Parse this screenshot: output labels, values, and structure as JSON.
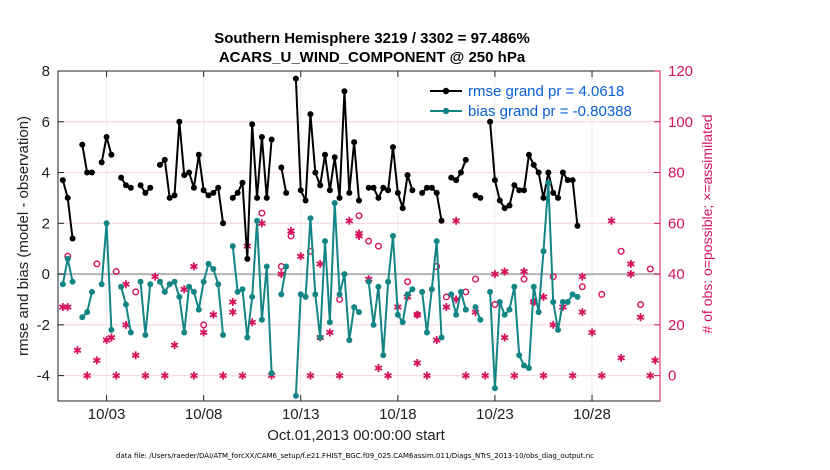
{
  "chart_data": {
    "type": "line",
    "title_line1": "Southern Hemisphere 3219 / 3302 = 97.486%",
    "title_line2": "ACARS_U_WIND_COMPONENT @ 250 hPa",
    "xlabel": "Oct.01,2013 00:00:00 start",
    "ylabel": "rmse and bias (model - observation)",
    "y2label": "# of obs: o=possible; ×=assimilated",
    "footer": "data file: /Users/raeder/DAI/ATM_forcXX/CAM6_setup/f.e21.FHIST_BGC.f09_025.CAM6assim.011/Diags_NTrS_2013-10/obs_diag_output.nc",
    "xlim": [
      0.5,
      31.5
    ],
    "ylim": [
      -5,
      8
    ],
    "y2lim": [
      -10,
      120
    ],
    "x_ticks": [
      3,
      8,
      13,
      18,
      23,
      28
    ],
    "x_tick_labels": [
      "10/03",
      "10/08",
      "10/13",
      "10/18",
      "10/23",
      "10/28"
    ],
    "y_ticks": [
      -4,
      -2,
      0,
      2,
      4,
      6,
      8
    ],
    "y2_ticks": [
      0,
      20,
      40,
      60,
      80,
      100,
      120
    ],
    "colors": {
      "rmse": "#000000",
      "bias": "#138585",
      "obs": "#d6135d",
      "zero": "#b4b4b4"
    },
    "series": [
      {
        "name": "rmse grand pr = 4.0618",
        "x_start": 0.75,
        "x_step": 0.25,
        "values": [
          3.7,
          3.0,
          1.4,
          null,
          5.1,
          4.0,
          4.0,
          null,
          4.4,
          5.4,
          4.7,
          null,
          3.8,
          3.5,
          3.4,
          null,
          3.5,
          3.2,
          3.4,
          null,
          4.3,
          4.5,
          3.0,
          3.1,
          6.0,
          3.9,
          4.0,
          3.4,
          4.7,
          3.3,
          3.1,
          3.2,
          3.4,
          2.0,
          null,
          3.0,
          3.2,
          3.6,
          0.6,
          5.9,
          3.0,
          5.4,
          3.0,
          5.3,
          null,
          4.2,
          3.2,
          null,
          7.7,
          3.3,
          2.9,
          6.3,
          4.0,
          3.5,
          4.7,
          3.3,
          4.6,
          3.0,
          7.2,
          3.2,
          5.2,
          2.9,
          null,
          3.4,
          3.4,
          3.0,
          3.4,
          3.3,
          5.0,
          3.2,
          2.6,
          3.9,
          3.3,
          null,
          3.2,
          3.4,
          3.4,
          3.2,
          2.1,
          null,
          3.8,
          3.7,
          4.0,
          4.5,
          null,
          3.1,
          3.0,
          null,
          6.0,
          3.7,
          2.9,
          2.6,
          2.7,
          3.5,
          3.3,
          3.3,
          4.7,
          4.3,
          4.0,
          3.0,
          4.0,
          3.2,
          3.0,
          4.0,
          3.7,
          3.7,
          1.9
        ],
        "note": "grand value equals mean of valid points"
      },
      {
        "name": "bias grand pr = -0.80388",
        "x_start": 0.75,
        "x_step": 0.25,
        "values": [
          -0.4,
          0.6,
          -0.3,
          null,
          -1.7,
          -1.5,
          -0.7,
          null,
          -0.4,
          2.0,
          -2.2,
          null,
          -0.5,
          -1.2,
          -2.3,
          null,
          -0.3,
          -2.4,
          -0.4,
          null,
          -0.3,
          -0.7,
          -0.4,
          -0.3,
          -0.9,
          -2.3,
          -0.5,
          -0.7,
          -1.4,
          -0.3,
          0.4,
          0.2,
          -0.4,
          -2.4,
          null,
          1.1,
          -0.7,
          -0.6,
          -2.5,
          -0.9,
          2.1,
          -1.8,
          0.3,
          -3.9,
          null,
          -0.8,
          0.3,
          null,
          -4.8,
          -0.8,
          -0.9,
          2.2,
          -0.8,
          -2.5,
          1.3,
          -1.9,
          2.8,
          -0.8,
          0.0,
          -2.6,
          -1.3,
          -1.5,
          null,
          -0.3,
          -2.0,
          -0.5,
          -3.2,
          -0.3,
          1.5,
          -1.6,
          -1.9,
          -0.8,
          -0.6,
          null,
          -0.7,
          -2.3,
          -0.6,
          1.3,
          -2.5,
          null,
          -0.8,
          -1.6,
          -0.7,
          -1.4,
          null,
          -1.3,
          -1.8,
          null,
          -0.7,
          -4.5,
          -1.1,
          -1.6,
          -1.4,
          -0.5,
          -3.2,
          -3.6,
          -3.7,
          -0.5,
          -1.5,
          0.9,
          3.6,
          -1.1,
          -2.2,
          -1.1,
          -1.1,
          -0.8,
          -0.9
        ],
        "note": "grand value equals mean of valid points"
      }
    ],
    "obs_series": [
      {
        "name": "possible",
        "marker": "o",
        "points": [
          [
            11.0,
            64
          ],
          [
            12.5,
            55
          ],
          [
            12.0,
            43
          ],
          [
            13.5,
            49
          ],
          [
            16.0,
            63
          ],
          [
            16.5,
            53
          ],
          [
            17.0,
            51
          ],
          [
            18.5,
            37
          ],
          [
            20.0,
            43
          ],
          [
            20.5,
            31
          ],
          [
            22.0,
            38
          ],
          [
            24.5,
            38
          ],
          [
            26.0,
            39
          ],
          [
            27.5,
            35
          ],
          [
            28.5,
            32
          ],
          [
            29.5,
            49
          ],
          [
            30.5,
            28
          ],
          [
            31.0,
            42
          ],
          [
            1.0,
            47
          ],
          [
            2.5,
            44
          ],
          [
            3.5,
            41
          ],
          [
            4.5,
            33
          ],
          [
            8.0,
            20
          ],
          [
            15.0,
            30
          ],
          [
            19.0,
            24
          ],
          [
            21.5,
            33
          ],
          [
            23.0,
            28
          ],
          [
            25.0,
            29
          ]
        ]
      },
      {
        "name": "assimilated",
        "marker": "*",
        "points": [
          [
            0.75,
            27
          ],
          [
            1.0,
            27
          ],
          [
            1.5,
            10
          ],
          [
            2.0,
            0
          ],
          [
            2.5,
            6
          ],
          [
            3.0,
            14
          ],
          [
            3.25,
            15
          ],
          [
            3.5,
            0
          ],
          [
            4.0,
            20
          ],
          [
            4.5,
            8
          ],
          [
            5.0,
            0
          ],
          [
            5.5,
            39
          ],
          [
            6.0,
            0
          ],
          [
            6.5,
            12
          ],
          [
            7.0,
            34
          ],
          [
            7.5,
            0
          ],
          [
            8.0,
            17
          ],
          [
            8.5,
            24
          ],
          [
            9.0,
            0
          ],
          [
            9.5,
            25
          ],
          [
            10.0,
            0
          ],
          [
            10.5,
            21
          ],
          [
            11.0,
            60
          ],
          [
            11.5,
            0
          ],
          [
            12.0,
            40
          ],
          [
            12.5,
            57
          ],
          [
            13.0,
            47
          ],
          [
            13.5,
            0
          ],
          [
            14.0,
            15
          ],
          [
            14.5,
            17
          ],
          [
            15.0,
            0
          ],
          [
            15.5,
            61
          ],
          [
            16.0,
            56
          ],
          [
            16.5,
            38
          ],
          [
            17.0,
            3
          ],
          [
            17.5,
            0
          ],
          [
            18.0,
            27
          ],
          [
            18.5,
            31
          ],
          [
            19.0,
            5
          ],
          [
            19.5,
            0
          ],
          [
            20.0,
            14
          ],
          [
            20.5,
            27
          ],
          [
            21.0,
            61
          ],
          [
            21.5,
            0
          ],
          [
            22.0,
            25
          ],
          [
            22.5,
            0
          ],
          [
            23.0,
            40
          ],
          [
            23.5,
            15
          ],
          [
            24.0,
            0
          ],
          [
            24.5,
            41
          ],
          [
            25.0,
            29
          ],
          [
            25.5,
            0
          ],
          [
            26.0,
            20
          ],
          [
            26.5,
            27
          ],
          [
            27.0,
            0
          ],
          [
            27.5,
            25
          ],
          [
            28.0,
            17
          ],
          [
            28.5,
            0
          ],
          [
            29.0,
            61
          ],
          [
            29.5,
            7
          ],
          [
            30.0,
            44
          ],
          [
            30.5,
            23
          ],
          [
            31.0,
            0
          ],
          [
            31.25,
            6
          ],
          [
            4.0,
            36
          ],
          [
            7.5,
            43
          ],
          [
            9.5,
            29
          ],
          [
            10.25,
            51
          ],
          [
            14.0,
            44
          ],
          [
            16.0,
            55
          ],
          [
            19.0,
            24
          ],
          [
            21.0,
            30
          ],
          [
            23.5,
            41
          ],
          [
            25.5,
            31
          ],
          [
            27.5,
            39
          ],
          [
            30.0,
            40
          ]
        ]
      }
    ],
    "legend": {
      "position": "top-right",
      "rmse_label": "rmse grand pr = 4.0618",
      "bias_label": "bias grand pr = -0.80388"
    }
  }
}
